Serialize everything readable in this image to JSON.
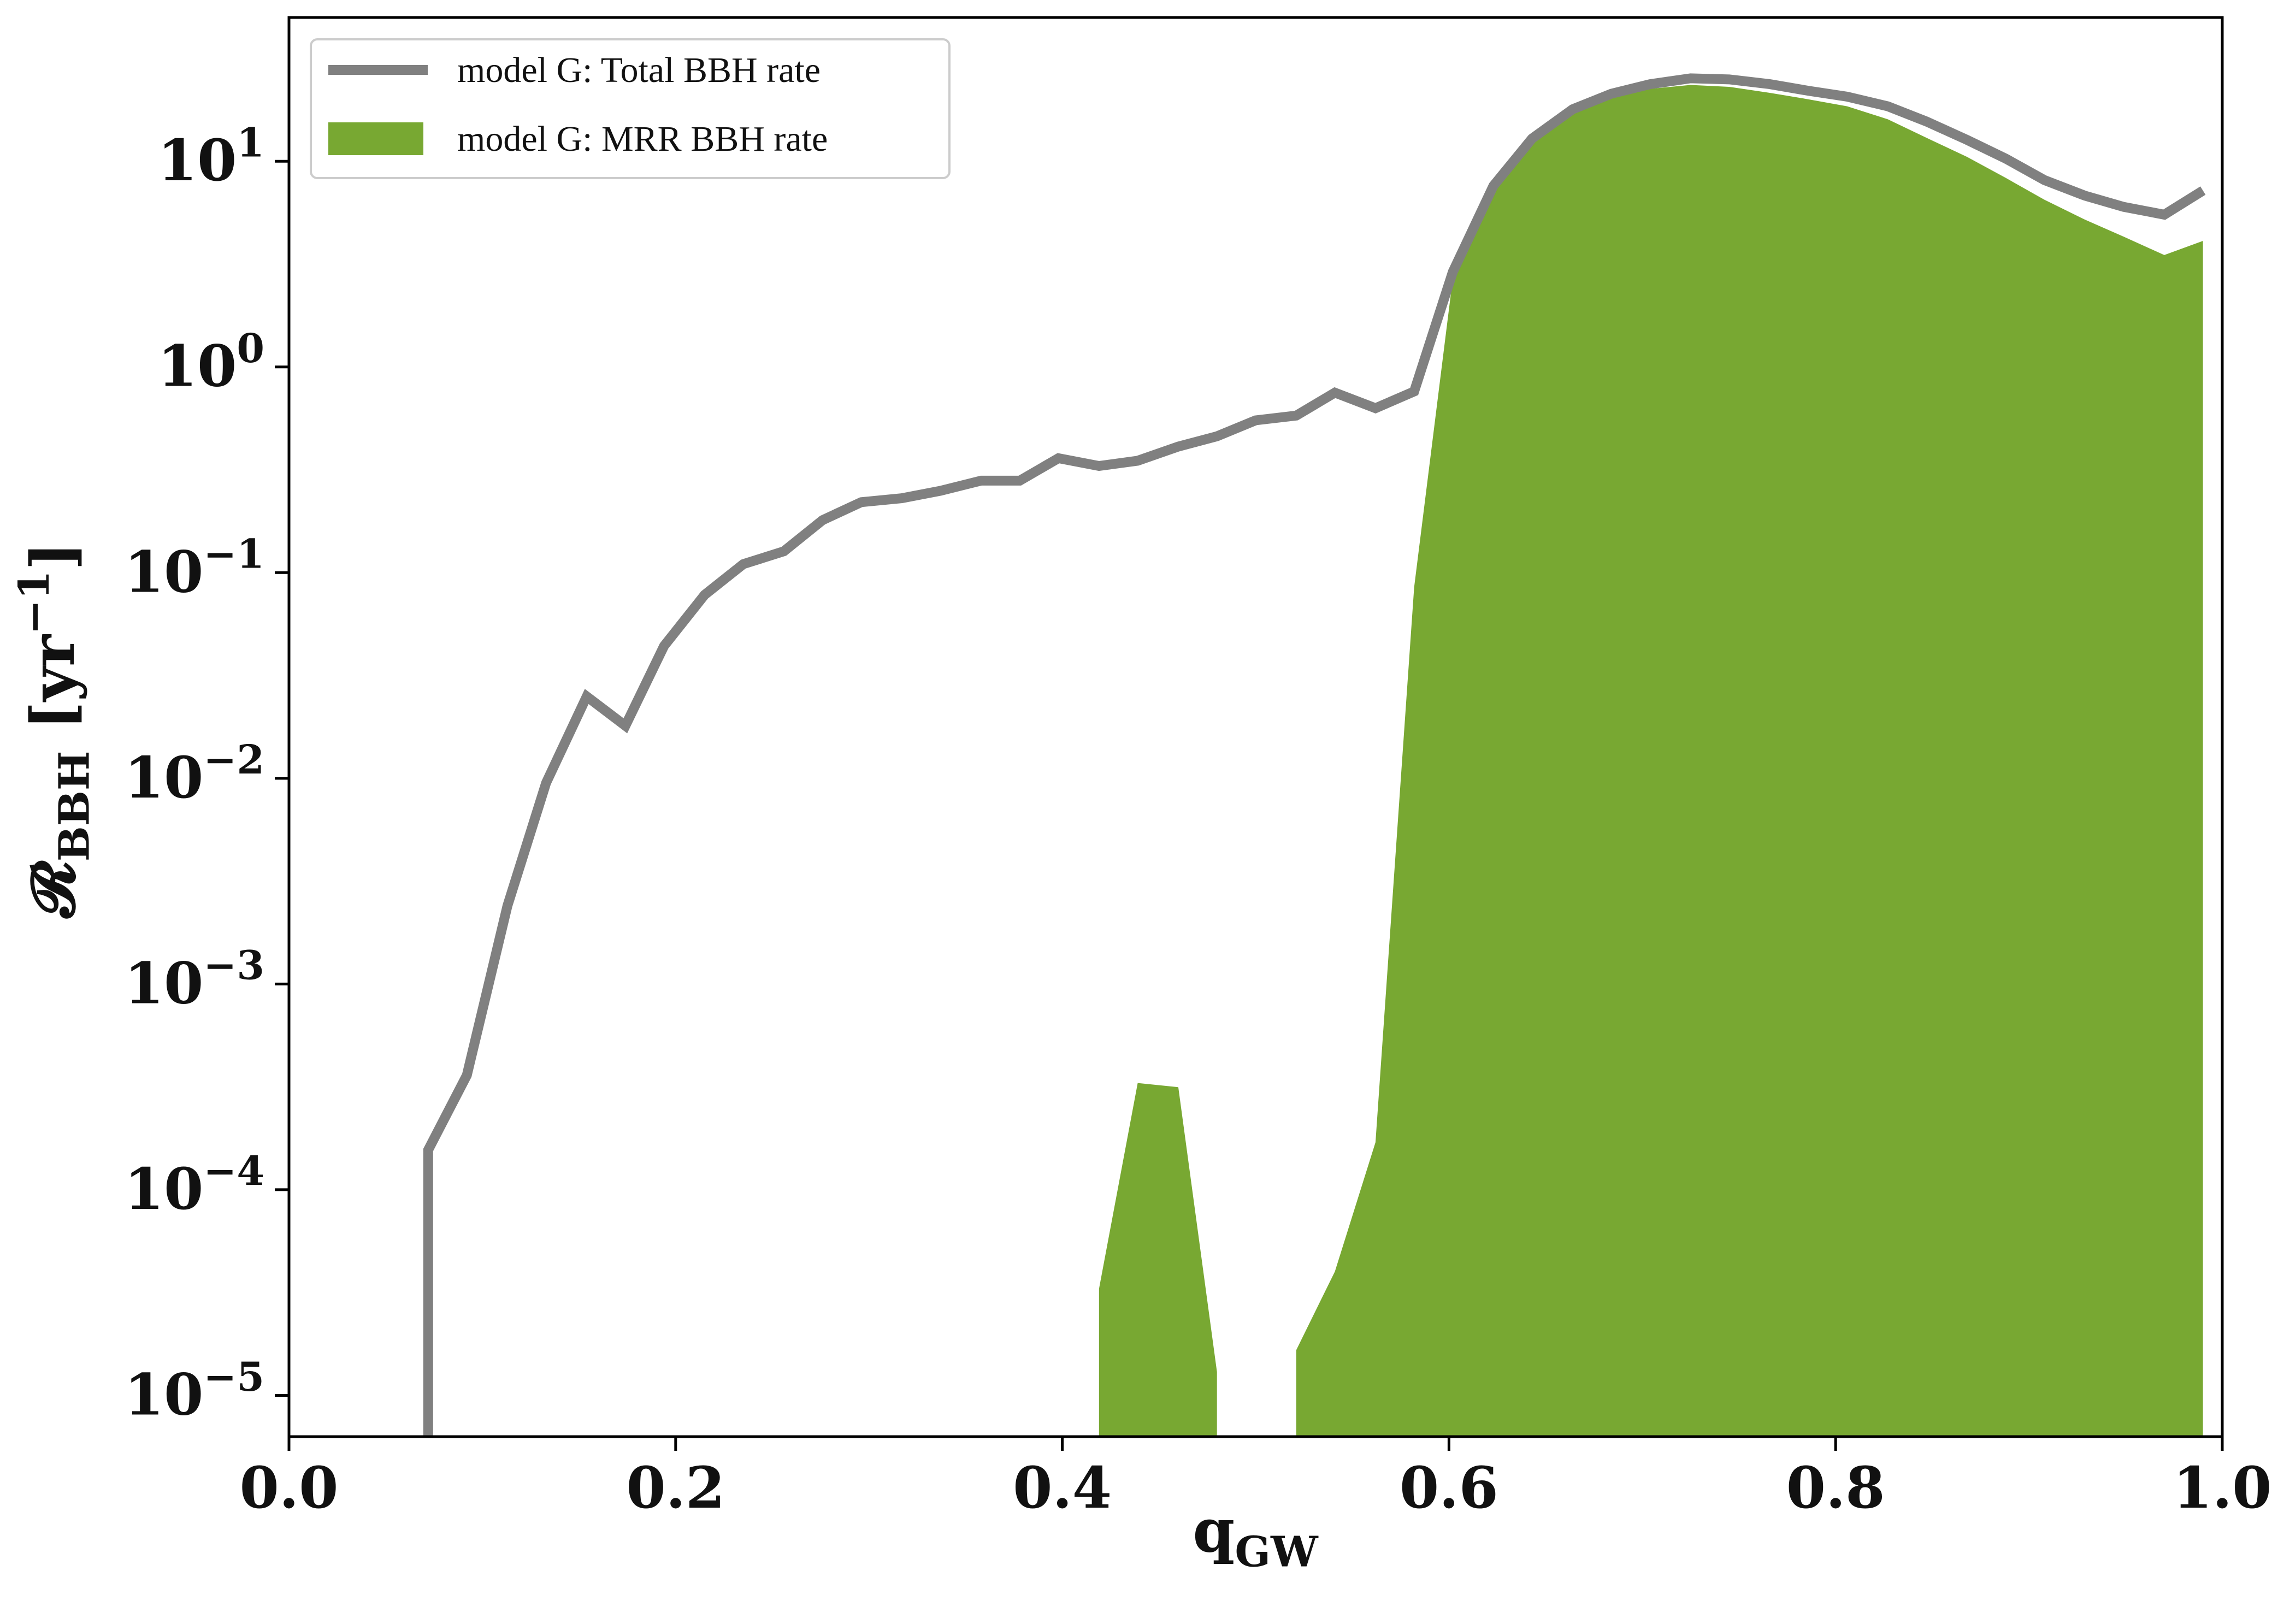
{
  "chart_data": {
    "type": "line",
    "xlabel": "q_{GW}",
    "ylabel": "𝓡_{BBH} [yr^{−1}]",
    "x": [
      0.072,
      0.072,
      0.092,
      0.113,
      0.133,
      0.154,
      0.174,
      0.194,
      0.215,
      0.235,
      0.256,
      0.276,
      0.296,
      0.317,
      0.337,
      0.358,
      0.378,
      0.398,
      0.419,
      0.439,
      0.46,
      0.48,
      0.5,
      0.521,
      0.541,
      0.562,
      0.582,
      0.602,
      0.623,
      0.643,
      0.664,
      0.684,
      0.704,
      0.725,
      0.745,
      0.766,
      0.786,
      0.806,
      0.827,
      0.847,
      0.868,
      0.888,
      0.908,
      0.929,
      0.949,
      0.97,
      0.99
    ],
    "series": [
      {
        "name": "model G: Total BBH rate",
        "type": "line",
        "color": "#808080",
        "values": [
          5e-06,
          0.000156,
          0.00036,
          0.0024,
          0.0095,
          0.025,
          0.018,
          0.044,
          0.078,
          0.11,
          0.127,
          0.18,
          0.22,
          0.23,
          0.25,
          0.28,
          0.28,
          0.36,
          0.33,
          0.35,
          0.41,
          0.46,
          0.55,
          0.58,
          0.75,
          0.63,
          0.76,
          2.9,
          7.6,
          12.9,
          17.9,
          21.3,
          23.7,
          25.3,
          25,
          23.7,
          22,
          20.6,
          18.5,
          15.6,
          12.7,
          10.3,
          8.1,
          6.8,
          6.0,
          5.5,
          7.2
        ]
      },
      {
        "name": "model G: MRR BBH rate",
        "type": "area",
        "color": "#78a832",
        "values": [
          null,
          null,
          null,
          null,
          null,
          null,
          null,
          null,
          null,
          null,
          null,
          null,
          null,
          null,
          null,
          null,
          null,
          null,
          3.3e-05,
          0.00033,
          0.000315,
          1.3e-05,
          null,
          1.66e-05,
          4e-05,
          0.00017,
          0.085,
          2.7,
          8,
          13,
          17.5,
          20.5,
          22.5,
          23.5,
          23,
          21.5,
          20,
          18.5,
          16,
          13,
          10.5,
          8.3,
          6.5,
          5.2,
          4.3,
          3.5,
          4.1
        ]
      }
    ],
    "xlim": [
      0,
      1
    ],
    "xticks": [
      {
        "value": 0,
        "label": "0.0"
      },
      0.2,
      0.4,
      0.6,
      0.8,
      {
        "value": 1,
        "label": "1.0"
      }
    ],
    "ylim": [
      6.3e-06,
      50
    ],
    "yticks": [
      {
        "value": 1e-05,
        "label": "10^{−5}"
      },
      {
        "value": 0.0001,
        "label": "10^{−4}"
      },
      {
        "value": 0.001,
        "label": "10^{−3}"
      },
      {
        "value": 0.01,
        "label": "10^{−2}"
      },
      {
        "value": 0.1,
        "label": "10^{−1}"
      },
      {
        "value": 1,
        "label": "10^{0}"
      },
      {
        "value": 10,
        "label": "10^{1}"
      }
    ],
    "yscale": "log",
    "legend": "upper left"
  }
}
